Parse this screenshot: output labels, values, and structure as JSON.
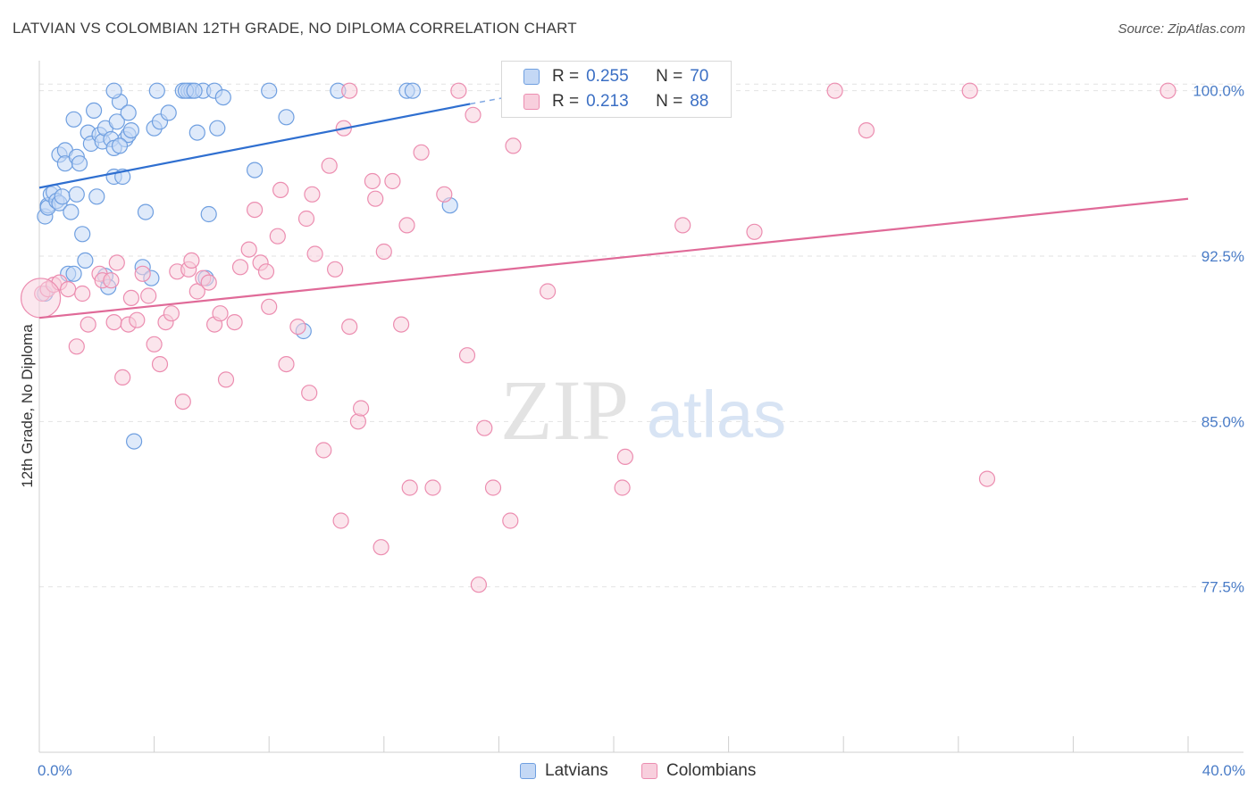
{
  "header": {
    "title": "LATVIAN VS COLOMBIAN 12TH GRADE, NO DIPLOMA CORRELATION CHART",
    "source": "Source: ZipAtlas.com"
  },
  "watermark": {
    "zip": "ZIP",
    "atlas": "atlas"
  },
  "legend": {
    "rows": [
      {
        "r_label": "R =",
        "r_value": "0.255",
        "n_label": "N =",
        "n_value": "70",
        "color": "#6f9fe0",
        "fill": "#c4d8f5"
      },
      {
        "r_label": "R =",
        "r_value": "0.213",
        "n_label": "N =",
        "n_value": "88",
        "color": "#ec8db0",
        "fill": "#f8cfdd"
      }
    ]
  },
  "bottom_legend": [
    {
      "label": "Latvians",
      "color": "#6f9fe0",
      "fill": "#c4d8f5"
    },
    {
      "label": "Colombians",
      "color": "#ec8db0",
      "fill": "#f8cfdd"
    }
  ],
  "chart_data": {
    "type": "scatter",
    "title": "LATVIAN VS COLOMBIAN 12TH GRADE, NO DIPLOMA CORRELATION CHART",
    "xlabel": "",
    "ylabel": "12th Grade, No Diploma",
    "xlim": [
      0,
      40
    ],
    "ylim": [
      70,
      101.2
    ],
    "x_tick_labels": [
      "0.0%",
      "40.0%"
    ],
    "y_ticks": [
      77.5,
      85.0,
      92.5,
      100.0
    ],
    "y_tick_labels": [
      "77.5%",
      "85.0%",
      "92.5%",
      "100.0%"
    ],
    "grid": true,
    "legend_position": "top-center",
    "series": [
      {
        "name": "Latvians",
        "color": "#6f9fe0",
        "fill": "#c4d8f5",
        "trend_color": "#2f6fd0",
        "trend": {
          "x0": 0,
          "y0": 95.6,
          "x1": 15,
          "y1": 99.4,
          "dash_to_x": 17.5,
          "dash_to_y": 100.0
        },
        "points": [
          [
            0.2,
            94.3
          ],
          [
            0.3,
            94.8
          ],
          [
            0.3,
            94.7
          ],
          [
            0.4,
            95.3
          ],
          [
            0.5,
            95.4
          ],
          [
            0.6,
            95.0
          ],
          [
            0.7,
            94.9
          ],
          [
            0.7,
            97.1
          ],
          [
            0.8,
            95.2
          ],
          [
            0.9,
            97.3
          ],
          [
            0.9,
            96.7
          ],
          [
            1.0,
            91.7
          ],
          [
            1.1,
            94.5
          ],
          [
            1.2,
            98.7
          ],
          [
            1.3,
            97.0
          ],
          [
            1.4,
            96.7
          ],
          [
            1.5,
            93.5
          ],
          [
            1.6,
            92.3
          ],
          [
            1.7,
            98.1
          ],
          [
            1.8,
            97.6
          ],
          [
            1.9,
            99.1
          ],
          [
            2.0,
            95.2
          ],
          [
            2.1,
            98.0
          ],
          [
            2.2,
            97.7
          ],
          [
            2.3,
            98.3
          ],
          [
            2.3,
            91.6
          ],
          [
            2.4,
            91.1
          ],
          [
            2.5,
            97.8
          ],
          [
            2.6,
            96.1
          ],
          [
            2.6,
            97.4
          ],
          [
            2.7,
            98.6
          ],
          [
            2.8,
            99.5
          ],
          [
            2.9,
            96.1
          ],
          [
            3.0,
            97.8
          ],
          [
            3.1,
            99.0
          ],
          [
            3.1,
            98.0
          ],
          [
            3.2,
            98.2
          ],
          [
            3.3,
            84.1
          ],
          [
            3.6,
            92.0
          ],
          [
            3.7,
            94.5
          ],
          [
            3.9,
            91.5
          ],
          [
            4.0,
            98.3
          ],
          [
            4.2,
            98.6
          ],
          [
            4.5,
            99.0
          ],
          [
            5.0,
            100.0
          ],
          [
            5.2,
            100.0
          ],
          [
            5.3,
            100.0
          ],
          [
            5.5,
            98.1
          ],
          [
            5.7,
            100.0
          ],
          [
            5.8,
            91.5
          ],
          [
            5.9,
            94.4
          ],
          [
            6.1,
            100.0
          ],
          [
            6.2,
            98.3
          ],
          [
            6.4,
            99.7
          ],
          [
            7.5,
            96.4
          ],
          [
            8.0,
            100.0
          ],
          [
            8.6,
            98.8
          ],
          [
            9.2,
            89.1
          ],
          [
            10.4,
            100.0
          ],
          [
            12.8,
            100.0
          ],
          [
            13.0,
            100.0
          ],
          [
            14.3,
            94.8
          ],
          [
            2.6,
            100.0
          ],
          [
            4.1,
            100.0
          ],
          [
            5.1,
            100.0
          ],
          [
            0.2,
            90.8
          ],
          [
            1.2,
            91.7
          ],
          [
            2.8,
            97.5
          ],
          [
            1.3,
            95.3
          ],
          [
            5.4,
            100.0
          ]
        ]
      },
      {
        "name": "Colombians",
        "color": "#ec8db0",
        "fill": "#f8cfdd",
        "trend_color": "#e06a98",
        "trend": {
          "x0": 0,
          "y0": 89.7,
          "x1": 40,
          "y1": 95.1
        },
        "points": [
          [
            0.1,
            90.8
          ],
          [
            0.3,
            91.0
          ],
          [
            0.5,
            91.2
          ],
          [
            0.7,
            91.3
          ],
          [
            1.0,
            91.0
          ],
          [
            1.3,
            88.4
          ],
          [
            1.5,
            90.8
          ],
          [
            1.7,
            89.4
          ],
          [
            2.1,
            91.7
          ],
          [
            2.2,
            91.4
          ],
          [
            2.5,
            91.4
          ],
          [
            2.6,
            89.5
          ],
          [
            2.7,
            92.2
          ],
          [
            2.9,
            87.0
          ],
          [
            3.1,
            89.4
          ],
          [
            3.2,
            90.6
          ],
          [
            3.4,
            89.6
          ],
          [
            3.6,
            91.7
          ],
          [
            3.8,
            90.7
          ],
          [
            4.0,
            88.5
          ],
          [
            4.2,
            87.6
          ],
          [
            4.4,
            89.5
          ],
          [
            4.6,
            89.9
          ],
          [
            4.8,
            91.8
          ],
          [
            5.0,
            85.9
          ],
          [
            5.2,
            91.9
          ],
          [
            5.3,
            92.3
          ],
          [
            5.5,
            90.9
          ],
          [
            5.7,
            91.5
          ],
          [
            5.9,
            91.3
          ],
          [
            6.1,
            89.4
          ],
          [
            6.3,
            89.9
          ],
          [
            6.5,
            86.9
          ],
          [
            6.8,
            89.5
          ],
          [
            7.0,
            92.0
          ],
          [
            7.3,
            92.8
          ],
          [
            7.5,
            94.6
          ],
          [
            7.7,
            92.2
          ],
          [
            7.9,
            91.8
          ],
          [
            8.0,
            90.2
          ],
          [
            8.3,
            93.4
          ],
          [
            8.4,
            95.5
          ],
          [
            8.6,
            87.6
          ],
          [
            9.0,
            89.3
          ],
          [
            9.3,
            94.2
          ],
          [
            9.4,
            86.3
          ],
          [
            9.6,
            92.6
          ],
          [
            9.9,
            83.7
          ],
          [
            10.1,
            96.6
          ],
          [
            10.3,
            91.9
          ],
          [
            10.5,
            80.5
          ],
          [
            10.6,
            98.3
          ],
          [
            10.8,
            89.3
          ],
          [
            11.1,
            85.0
          ],
          [
            11.2,
            85.6
          ],
          [
            11.6,
            95.9
          ],
          [
            11.7,
            95.1
          ],
          [
            11.9,
            79.3
          ],
          [
            12.0,
            92.7
          ],
          [
            12.3,
            95.9
          ],
          [
            12.6,
            89.4
          ],
          [
            12.8,
            93.9
          ],
          [
            12.9,
            82.0
          ],
          [
            13.3,
            97.2
          ],
          [
            13.7,
            82.0
          ],
          [
            14.1,
            95.3
          ],
          [
            14.9,
            88.0
          ],
          [
            15.5,
            84.7
          ],
          [
            15.8,
            82.0
          ],
          [
            16.4,
            80.5
          ],
          [
            16.5,
            97.5
          ],
          [
            17.7,
            90.9
          ],
          [
            20.3,
            82.0
          ],
          [
            20.4,
            83.4
          ],
          [
            22.4,
            93.9
          ],
          [
            24.9,
            93.6
          ],
          [
            28.8,
            98.2
          ],
          [
            33.0,
            82.4
          ],
          [
            10.8,
            100.0
          ],
          [
            14.6,
            100.0
          ],
          [
            17.8,
            100.0
          ],
          [
            22.5,
            100.0
          ],
          [
            27.7,
            100.0
          ],
          [
            32.4,
            100.0
          ],
          [
            39.3,
            100.0
          ],
          [
            15.1,
            98.9
          ],
          [
            9.5,
            95.3
          ],
          [
            15.3,
            77.6
          ]
        ]
      }
    ]
  }
}
